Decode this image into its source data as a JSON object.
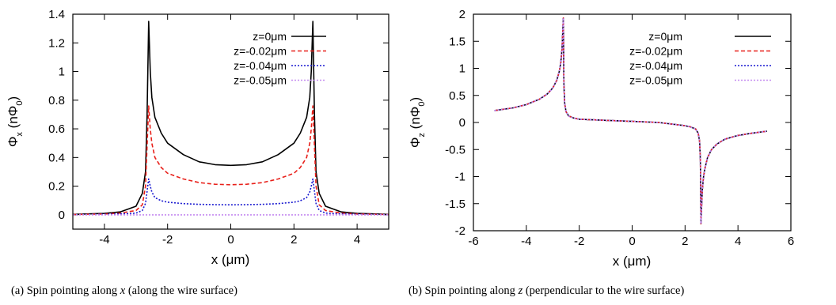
{
  "chart_data": [
    {
      "type": "line",
      "xlabel": "x (μm)",
      "ylabel": "Φx (nΦ0)",
      "ylabel_parts": [
        "Φ",
        "x",
        " (nΦ",
        "0",
        ")"
      ],
      "xlim": [
        -5,
        5
      ],
      "ylim": [
        -0.1,
        1.4
      ],
      "x_ticks": [
        -4,
        -2,
        0,
        2,
        4
      ],
      "x_tick_labels": [
        "-4",
        "-2",
        "0",
        "2",
        "4"
      ],
      "y_ticks": [
        0,
        0.2,
        0.4,
        0.6,
        0.8,
        1,
        1.2,
        1.4
      ],
      "y_tick_labels": [
        "0",
        "0.2",
        "0.4",
        "0.6",
        "0.8",
        "1",
        "1.2",
        "1.4"
      ],
      "legend_position": "top-right",
      "caption": "(a) Spin pointing along x (along the wire surface)",
      "caption_parts": [
        "(a) Spin pointing along ",
        "x",
        " (along the wire surface)"
      ],
      "series": [
        {
          "name": "z=0μm",
          "color": "#000000",
          "style": "solid",
          "x": [
            -5,
            -4,
            -3.5,
            -3,
            -2.8,
            -2.7,
            -2.65,
            -2.6,
            -2.55,
            -2.5,
            -2.4,
            -2.2,
            -2,
            -1.5,
            -1,
            -0.5,
            0,
            0.5,
            1,
            1.5,
            2,
            2.2,
            2.4,
            2.5,
            2.55,
            2.6,
            2.65,
            2.7,
            2.8,
            3,
            3.5,
            4,
            5
          ],
          "y": [
            0.003,
            0.01,
            0.02,
            0.06,
            0.15,
            0.3,
            0.7,
            1.35,
            1.0,
            0.82,
            0.68,
            0.57,
            0.5,
            0.42,
            0.37,
            0.35,
            0.345,
            0.35,
            0.37,
            0.42,
            0.5,
            0.57,
            0.68,
            0.82,
            1.0,
            1.35,
            0.7,
            0.3,
            0.15,
            0.06,
            0.02,
            0.01,
            0.003
          ]
        },
        {
          "name": "z=-0.02μm",
          "color": "#e8201a",
          "style": "dashed",
          "x": [
            -5,
            -4,
            -3.5,
            -3,
            -2.8,
            -2.7,
            -2.6,
            -2.55,
            -2.5,
            -2.4,
            -2.2,
            -2,
            -1.5,
            -1,
            -0.5,
            0,
            0.5,
            1,
            1.5,
            2,
            2.2,
            2.4,
            2.5,
            2.55,
            2.6,
            2.7,
            2.8,
            3,
            3.5,
            4,
            5
          ],
          "y": [
            0.002,
            0.006,
            0.012,
            0.03,
            0.07,
            0.2,
            0.76,
            0.6,
            0.5,
            0.4,
            0.33,
            0.29,
            0.25,
            0.225,
            0.213,
            0.21,
            0.213,
            0.225,
            0.25,
            0.29,
            0.33,
            0.4,
            0.5,
            0.6,
            0.76,
            0.2,
            0.07,
            0.03,
            0.012,
            0.006,
            0.002
          ]
        },
        {
          "name": "z=-0.04μm",
          "color": "#1a1ad0",
          "style": "dotted",
          "x": [
            -5,
            -4,
            -3.5,
            -3,
            -2.8,
            -2.7,
            -2.6,
            -2.55,
            -2.5,
            -2.4,
            -2.2,
            -2,
            -1.5,
            -1,
            -0.5,
            0,
            0.5,
            1,
            1.5,
            2,
            2.2,
            2.4,
            2.5,
            2.55,
            2.6,
            2.7,
            2.8,
            3,
            3.5,
            4,
            5
          ],
          "y": [
            0.001,
            0.003,
            0.006,
            0.012,
            0.03,
            0.08,
            0.25,
            0.2,
            0.16,
            0.12,
            0.098,
            0.088,
            0.078,
            0.073,
            0.071,
            0.07,
            0.071,
            0.073,
            0.078,
            0.088,
            0.098,
            0.12,
            0.16,
            0.2,
            0.25,
            0.08,
            0.03,
            0.012,
            0.006,
            0.003,
            0.001
          ]
        },
        {
          "name": "z=-0.05μm",
          "color": "#c58bf0",
          "style": "dotted",
          "x": [
            -5,
            5
          ],
          "y": [
            0,
            0
          ]
        }
      ]
    },
    {
      "type": "line",
      "xlabel": "x (μm)",
      "ylabel": "Φz (nΦ0)",
      "ylabel_parts": [
        "Φ",
        "z",
        " (nΦ",
        "0",
        ")"
      ],
      "xlim": [
        -6,
        6
      ],
      "ylim": [
        -2,
        2
      ],
      "x_ticks": [
        -6,
        -4,
        -2,
        0,
        2,
        4,
        6
      ],
      "x_tick_labels": [
        "-6",
        "-4",
        "-2",
        "0",
        "2",
        "4",
        "6"
      ],
      "y_ticks": [
        -2,
        -1.5,
        -1,
        -0.5,
        0,
        0.5,
        1,
        1.5,
        2
      ],
      "y_tick_labels": [
        "-2",
        "-1.5",
        "-1",
        "-0.5",
        "0",
        "0.5",
        "1",
        "1.5",
        "2"
      ],
      "legend_position": "top-right",
      "caption": "(b) Spin pointing along z (perpendicular to the wire surface)",
      "caption_parts": [
        "(b) Spin pointing along ",
        "z",
        " (perpendicular to the wire surface)"
      ],
      "series": [
        {
          "name": "z=0μm",
          "color": "#000000",
          "style": "solid",
          "x": [
            -5.2,
            -4.5,
            -4,
            -3.5,
            -3.2,
            -3,
            -2.85,
            -2.75,
            -2.7,
            -2.65,
            -2.62,
            -2.6,
            -2.58,
            -2.55,
            -2.5,
            -2.4,
            -2.2,
            -2,
            -1,
            0,
            1,
            2,
            2.2,
            2.4,
            2.5,
            2.55,
            2.58,
            2.6,
            2.62,
            2.65,
            2.7,
            2.75,
            2.85,
            3,
            3.2,
            3.5,
            4,
            4.5,
            5.1
          ],
          "y": [
            0.22,
            0.27,
            0.33,
            0.43,
            0.53,
            0.64,
            0.78,
            0.95,
            1.1,
            1.35,
            1.7,
            1.93,
            0.7,
            0.35,
            0.2,
            0.12,
            0.08,
            0.06,
            0.04,
            0.02,
            0.0,
            -0.06,
            -0.08,
            -0.12,
            -0.2,
            -0.35,
            -0.7,
            -1.87,
            -1.6,
            -1.25,
            -1.0,
            -0.85,
            -0.65,
            -0.5,
            -0.4,
            -0.31,
            -0.24,
            -0.2,
            -0.16
          ]
        },
        {
          "name": "z=-0.02μm",
          "color": "#e8201a",
          "style": "dashed",
          "x": [
            -5.2,
            -4.5,
            -4,
            -3.5,
            -3.2,
            -3,
            -2.85,
            -2.75,
            -2.7,
            -2.65,
            -2.62,
            -2.6,
            -2.58,
            -2.55,
            -2.5,
            -2.4,
            -2.2,
            -2,
            -1,
            0,
            1,
            2,
            2.2,
            2.4,
            2.5,
            2.55,
            2.58,
            2.6,
            2.62,
            2.65,
            2.7,
            2.75,
            2.85,
            3,
            3.2,
            3.5,
            4,
            4.5,
            5.1
          ],
          "y": [
            0.22,
            0.27,
            0.33,
            0.43,
            0.53,
            0.64,
            0.78,
            0.95,
            1.1,
            1.35,
            1.7,
            1.93,
            0.7,
            0.35,
            0.2,
            0.12,
            0.08,
            0.06,
            0.04,
            0.02,
            0.0,
            -0.06,
            -0.08,
            -0.12,
            -0.2,
            -0.35,
            -0.7,
            -1.87,
            -1.6,
            -1.25,
            -1.0,
            -0.85,
            -0.65,
            -0.5,
            -0.4,
            -0.31,
            -0.24,
            -0.2,
            -0.16
          ]
        },
        {
          "name": "z=-0.04μm",
          "color": "#1a1ad0",
          "style": "dotted",
          "x": [
            -5.2,
            -4.5,
            -4,
            -3.5,
            -3.2,
            -3,
            -2.85,
            -2.75,
            -2.7,
            -2.65,
            -2.62,
            -2.6,
            -2.58,
            -2.55,
            -2.5,
            -2.4,
            -2.2,
            -2,
            -1,
            0,
            1,
            2,
            2.2,
            2.4,
            2.5,
            2.55,
            2.58,
            2.6,
            2.62,
            2.65,
            2.7,
            2.75,
            2.85,
            3,
            3.2,
            3.5,
            4,
            4.5,
            5.1
          ],
          "y": [
            0.22,
            0.27,
            0.33,
            0.43,
            0.53,
            0.64,
            0.78,
            0.95,
            1.1,
            1.35,
            1.7,
            1.93,
            0.7,
            0.35,
            0.2,
            0.12,
            0.08,
            0.06,
            0.04,
            0.02,
            0.0,
            -0.06,
            -0.08,
            -0.12,
            -0.2,
            -0.35,
            -0.7,
            -1.87,
            -1.6,
            -1.25,
            -1.0,
            -0.85,
            -0.65,
            -0.5,
            -0.4,
            -0.31,
            -0.24,
            -0.2,
            -0.16
          ]
        },
        {
          "name": "z=-0.05μm",
          "color": "#c58bf0",
          "style": "dotted",
          "x": [
            -5.2,
            -4.5,
            -4,
            -3.5,
            -3.2,
            -3,
            -2.85,
            -2.75,
            -2.7,
            -2.65,
            -2.62,
            -2.6,
            -2.58,
            -2.55,
            -2.5,
            -2.4,
            -2.2,
            -2,
            -1,
            0,
            1,
            2,
            2.2,
            2.4,
            2.5,
            2.55,
            2.58,
            2.6,
            2.62,
            2.65,
            2.7,
            2.75,
            2.85,
            3,
            3.2,
            3.5,
            4,
            4.5,
            5.1
          ],
          "y": [
            0.22,
            0.27,
            0.33,
            0.43,
            0.53,
            0.64,
            0.78,
            0.95,
            1.1,
            1.35,
            1.7,
            1.93,
            0.7,
            0.35,
            0.2,
            0.12,
            0.08,
            0.06,
            0.04,
            0.02,
            0.0,
            -0.06,
            -0.08,
            -0.12,
            -0.2,
            -0.35,
            -0.7,
            -1.87,
            -1.6,
            -1.25,
            -1.0,
            -0.85,
            -0.65,
            -0.5,
            -0.4,
            -0.31,
            -0.24,
            -0.2,
            -0.16
          ]
        }
      ]
    }
  ]
}
